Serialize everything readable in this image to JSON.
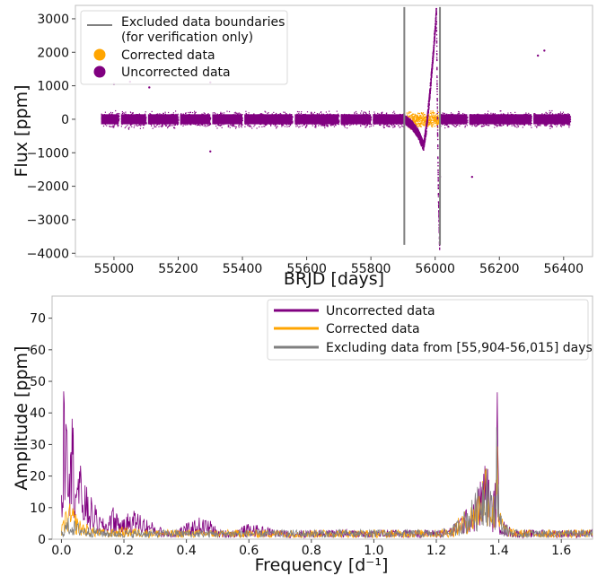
{
  "chart_data": [
    {
      "type": "scatter",
      "xlabel": "BRJD [days]",
      "ylabel": "Flux [ppm]",
      "xlim": [
        54880,
        56490
      ],
      "ylim": [
        -4100,
        3400
      ],
      "xticks": [
        55000,
        55200,
        55400,
        55600,
        55800,
        56000,
        56200,
        56400
      ],
      "yticks": [
        -4000,
        -3000,
        -2000,
        -1000,
        0,
        1000,
        2000,
        3000
      ],
      "ytick_labels": [
        "−4000",
        "−3000",
        "−2000",
        "−1000",
        "0",
        "1000",
        "2000",
        "3000"
      ],
      "vlines": [
        55904,
        56015
      ],
      "legend_position": "upper-left",
      "legend": [
        {
          "label": "Excluded data boundaries",
          "label2": "(for verification only)",
          "kind": "line",
          "color": "#808080"
        },
        {
          "label": "Corrected data",
          "kind": "marker",
          "color": "#ffa500"
        },
        {
          "label": "Uncorrected data",
          "kind": "marker",
          "color": "#800080"
        }
      ],
      "band": {
        "x_start": 54960,
        "x_end": 56420,
        "center": 0,
        "half_width": 300
      },
      "gaps": [
        [
          55015,
          55022
        ],
        [
          55100,
          55106
        ],
        [
          55200,
          55206
        ],
        [
          55300,
          55306
        ],
        [
          55400,
          55406
        ],
        [
          55555,
          55563
        ],
        [
          55700,
          55706
        ],
        [
          55800,
          55806
        ],
        [
          55993,
          56003
        ],
        [
          56100,
          56106
        ],
        [
          56300,
          56306
        ]
      ],
      "excursion": {
        "start": 55905,
        "stop": 56014,
        "points": [
          [
            55905,
            0
          ],
          [
            55925,
            -150
          ],
          [
            55945,
            -400
          ],
          [
            55962,
            -800
          ],
          [
            55970,
            -300
          ],
          [
            55980,
            600
          ],
          [
            55990,
            1700
          ],
          [
            56000,
            2900
          ],
          [
            56002,
            3300
          ],
          [
            56005,
            500
          ],
          [
            56008,
            -2000
          ],
          [
            56012,
            -3800
          ],
          [
            56014,
            -1500
          ]
        ]
      },
      "corrected": {
        "x_start": 55910,
        "x_end": 56012,
        "half_width": 300
      },
      "outliers": [
        [
          55000,
          1050
        ],
        [
          55050,
          1120
        ],
        [
          55110,
          950
        ],
        [
          55300,
          1100
        ],
        [
          55300,
          -960
        ],
        [
          56115,
          -1720
        ],
        [
          56320,
          1900
        ],
        [
          56340,
          2050
        ]
      ]
    },
    {
      "type": "line",
      "xlabel": "Frequency [d⁻¹]",
      "ylabel": "Amplitude [ppm]",
      "xlim": [
        -0.03,
        1.7
      ],
      "ylim": [
        0,
        77
      ],
      "xticks": [
        0.0,
        0.2,
        0.4,
        0.6,
        0.8,
        1.0,
        1.2,
        1.4,
        1.6
      ],
      "xtick_labels": [
        "0.0",
        "0.2",
        "0.4",
        "0.6",
        "0.8",
        "1.0",
        "1.2",
        "1.4",
        "1.6"
      ],
      "yticks": [
        0,
        10,
        20,
        30,
        40,
        50,
        60,
        70
      ],
      "legend_position": "upper-right",
      "series": [
        {
          "name": "Uncorrected data",
          "color": "#800080",
          "envelope": [
            [
              0.0,
              16
            ],
            [
              0.005,
              40
            ],
            [
              0.01,
              68
            ],
            [
              0.015,
              74
            ],
            [
              0.02,
              60
            ],
            [
              0.025,
              52
            ],
            [
              0.03,
              45
            ],
            [
              0.04,
              37
            ],
            [
              0.05,
              28
            ],
            [
              0.06,
              24
            ],
            [
              0.07,
              20
            ],
            [
              0.08,
              17
            ],
            [
              0.09,
              14
            ],
            [
              0.1,
              13
            ],
            [
              0.12,
              8
            ],
            [
              0.14,
              6
            ],
            [
              0.16,
              11
            ],
            [
              0.18,
              9
            ],
            [
              0.2,
              6
            ],
            [
              0.22,
              10
            ],
            [
              0.24,
              9
            ],
            [
              0.26,
              8
            ],
            [
              0.28,
              6
            ],
            [
              0.3,
              5
            ],
            [
              0.33,
              3
            ],
            [
              0.36,
              3
            ],
            [
              0.4,
              5
            ],
            [
              0.44,
              7
            ],
            [
              0.48,
              6
            ],
            [
              0.5,
              3
            ],
            [
              0.55,
              3
            ],
            [
              0.6,
              5
            ],
            [
              0.65,
              4
            ],
            [
              0.7,
              3
            ],
            [
              0.8,
              3
            ],
            [
              0.9,
              3
            ],
            [
              1.0,
              3
            ],
            [
              1.1,
              3
            ],
            [
              1.2,
              3
            ],
            [
              1.25,
              4
            ],
            [
              1.28,
              8
            ],
            [
              1.31,
              11
            ],
            [
              1.33,
              16
            ],
            [
              1.35,
              22
            ],
            [
              1.36,
              28
            ],
            [
              1.37,
              18
            ],
            [
              1.38,
              14
            ],
            [
              1.39,
              20
            ],
            [
              1.395,
              49
            ],
            [
              1.4,
              10
            ],
            [
              1.42,
              5
            ],
            [
              1.45,
              3
            ],
            [
              1.5,
              3
            ],
            [
              1.6,
              3
            ],
            [
              1.7,
              3
            ]
          ]
        },
        {
          "name": "Corrected data",
          "color": "#ffa500",
          "envelope": [
            [
              0.0,
              4
            ],
            [
              0.02,
              12
            ],
            [
              0.04,
              10
            ],
            [
              0.06,
              6
            ],
            [
              0.08,
              5
            ],
            [
              0.1,
              4
            ],
            [
              0.15,
              3
            ],
            [
              0.2,
              4
            ],
            [
              0.3,
              3
            ],
            [
              0.4,
              3
            ],
            [
              0.5,
              3
            ],
            [
              0.6,
              3
            ],
            [
              0.8,
              3
            ],
            [
              1.0,
              3
            ],
            [
              1.2,
              3
            ],
            [
              1.25,
              4
            ],
            [
              1.28,
              8
            ],
            [
              1.31,
              11
            ],
            [
              1.33,
              15
            ],
            [
              1.35,
              22
            ],
            [
              1.36,
              28
            ],
            [
              1.37,
              17
            ],
            [
              1.38,
              13
            ],
            [
              1.39,
              20
            ],
            [
              1.395,
              52
            ],
            [
              1.4,
              10
            ],
            [
              1.42,
              5
            ],
            [
              1.45,
              3
            ],
            [
              1.5,
              3
            ],
            [
              1.6,
              3
            ],
            [
              1.7,
              3
            ]
          ]
        },
        {
          "name": "Excluding data from [55,904-56,015] days",
          "color": "#808080",
          "envelope": [
            [
              0.0,
              3
            ],
            [
              0.02,
              7
            ],
            [
              0.04,
              6
            ],
            [
              0.06,
              5
            ],
            [
              0.08,
              4
            ],
            [
              0.1,
              4
            ],
            [
              0.15,
              3
            ],
            [
              0.2,
              3
            ],
            [
              0.3,
              3
            ],
            [
              0.4,
              3
            ],
            [
              0.5,
              3
            ],
            [
              0.6,
              3
            ],
            [
              0.8,
              3
            ],
            [
              1.0,
              3
            ],
            [
              1.2,
              3
            ],
            [
              1.25,
              4
            ],
            [
              1.28,
              8
            ],
            [
              1.31,
              12
            ],
            [
              1.33,
              16
            ],
            [
              1.35,
              23
            ],
            [
              1.36,
              29
            ],
            [
              1.37,
              18
            ],
            [
              1.38,
              13
            ],
            [
              1.39,
              21
            ],
            [
              1.395,
              53
            ],
            [
              1.4,
              10
            ],
            [
              1.42,
              5
            ],
            [
              1.45,
              3
            ],
            [
              1.5,
              3
            ],
            [
              1.6,
              3
            ],
            [
              1.7,
              3
            ]
          ]
        }
      ]
    }
  ]
}
